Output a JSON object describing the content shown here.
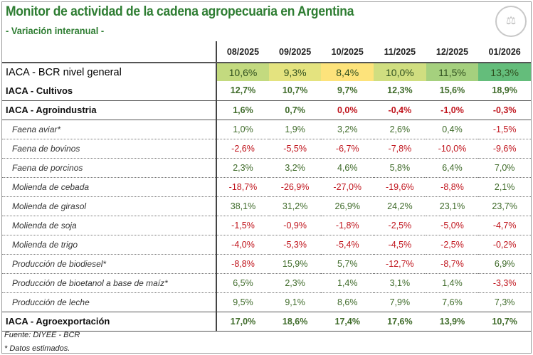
{
  "title": "Monitor de actividad de la cadena agropecuaria en Argentina",
  "subtitle": "- Variación interanual -",
  "logo_icon": "bcr-seal-logo",
  "colors": {
    "title": "#2e7d32",
    "positive": "#3f6b2a",
    "negative": "#c0141c"
  },
  "columns": [
    "08/2025",
    "09/2025",
    "10/2025",
    "11/2025",
    "12/2025",
    "01/2026"
  ],
  "rows": [
    {
      "label": "IACA - BCR nivel general",
      "type": "gen",
      "values": [
        "10,6%",
        "9,3%",
        "8,4%",
        "10,0%",
        "11,5%",
        "13,3%"
      ],
      "fills": [
        "#c3da7f",
        "#e4e37f",
        "#fde37b",
        "#d0de80",
        "#a5d07e",
        "#64bd7b"
      ]
    },
    {
      "label": "IACA - Cultivos",
      "type": "main",
      "values": [
        "12,7%",
        "10,7%",
        "9,7%",
        "12,3%",
        "15,6%",
        "18,9%"
      ]
    },
    {
      "label": "IACA - Agroindustria",
      "type": "main",
      "values": [
        "1,6%",
        "0,7%",
        "0,0%",
        "-0,4%",
        "-1,0%",
        "-0,3%"
      ],
      "neg": [
        false,
        false,
        true,
        true,
        true,
        true
      ]
    },
    {
      "label": "Faena aviar*",
      "type": "sub",
      "values": [
        "1,0%",
        "1,9%",
        "3,2%",
        "2,6%",
        "0,4%",
        "-1,5%"
      ]
    },
    {
      "label": "Faena de bovinos",
      "type": "sub",
      "values": [
        "-2,6%",
        "-5,5%",
        "-6,7%",
        "-7,8%",
        "-10,0%",
        "-9,6%"
      ]
    },
    {
      "label": "Faena de porcinos",
      "type": "sub",
      "values": [
        "2,3%",
        "3,2%",
        "4,6%",
        "5,8%",
        "6,4%",
        "7,0%"
      ]
    },
    {
      "label": "Molienda de cebada",
      "type": "sub",
      "values": [
        "-18,7%",
        "-26,9%",
        "-27,0%",
        "-19,6%",
        "-8,8%",
        "2,1%"
      ]
    },
    {
      "label": "Molienda de girasol",
      "type": "sub",
      "values": [
        "38,1%",
        "31,2%",
        "26,9%",
        "24,2%",
        "23,1%",
        "23,7%"
      ]
    },
    {
      "label": "Molienda de soja",
      "type": "sub",
      "values": [
        "-1,5%",
        "-0,9%",
        "-1,8%",
        "-2,5%",
        "-5,0%",
        "-4,7%"
      ]
    },
    {
      "label": "Molienda de trigo",
      "type": "sub",
      "values": [
        "-4,0%",
        "-5,3%",
        "-5,4%",
        "-4,5%",
        "-2,5%",
        "-0,2%"
      ]
    },
    {
      "label": "Producción de biodiesel*",
      "type": "sub",
      "values": [
        "-8,8%",
        "15,9%",
        "5,7%",
        "-12,7%",
        "-8,7%",
        "6,9%"
      ]
    },
    {
      "label": "Producción de bioetanol a base de maíz*",
      "type": "sub",
      "values": [
        "6,5%",
        "2,3%",
        "1,4%",
        "3,1%",
        "1,4%",
        "-3,3%"
      ]
    },
    {
      "label": "Producción de leche",
      "type": "sub last",
      "values": [
        "9,5%",
        "9,1%",
        "8,6%",
        "7,9%",
        "7,6%",
        "7,3%"
      ]
    },
    {
      "label": "IACA - Agroexportación",
      "type": "main",
      "values": [
        "17,0%",
        "18,6%",
        "17,4%",
        "17,6%",
        "13,9%",
        "10,7%"
      ]
    }
  ],
  "footer": {
    "source": "Fuente: DIYEE - BCR",
    "note": "* Datos estimados."
  }
}
